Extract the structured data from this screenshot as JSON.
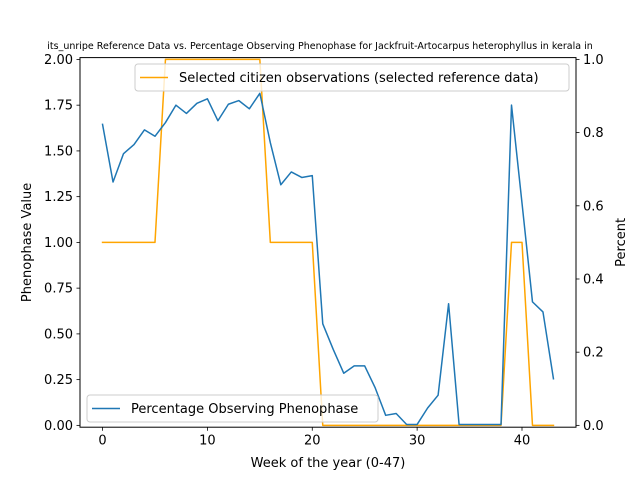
{
  "chart_data": {
    "type": "line",
    "title": "its_unripe Reference Data vs. Percentage Observing Phenophase for Jackfruit-Artocarpus heterophyllus in kerala in",
    "xlabel": "Week of the year (0-47)",
    "ylabel_left": "Phenophase Value",
    "ylabel_right": "Percent",
    "xlim": [
      -2.15,
      45.15
    ],
    "ylim_left": [
      -0.01,
      2.01
    ],
    "ylim_right": [
      -0.005,
      1.005
    ],
    "x_ticks": [
      0,
      10,
      20,
      30,
      40
    ],
    "y_ticks_left": [
      0.0,
      0.25,
      0.5,
      0.75,
      1.0,
      1.25,
      1.5,
      1.75,
      2.0
    ],
    "y_ticks_left_labels": [
      "0.00",
      "0.25",
      "0.50",
      "0.75",
      "1.00",
      "1.25",
      "1.50",
      "1.75",
      "2.00"
    ],
    "y_ticks_right": [
      0.0,
      0.2,
      0.4,
      0.6,
      0.8,
      1.0
    ],
    "y_ticks_right_labels": [
      "0.0",
      "0.2",
      "0.4",
      "0.6",
      "0.8",
      "1.0"
    ],
    "series": [
      {
        "name": "Percentage Observing Phenophase",
        "axis": "left",
        "color": "#1f77b4",
        "x": [
          0,
          1,
          2,
          3,
          4,
          5,
          6,
          7,
          8,
          9,
          10,
          11,
          12,
          13,
          14,
          15,
          16,
          17,
          18,
          19,
          20,
          21,
          22,
          23,
          24,
          25,
          26,
          27,
          28,
          29,
          30,
          31,
          32,
          33,
          34,
          35,
          36,
          37,
          38,
          39,
          40,
          41,
          42,
          43
        ],
        "y": [
          1.645,
          1.33,
          1.485,
          1.535,
          1.615,
          1.58,
          1.655,
          1.75,
          1.705,
          1.76,
          1.785,
          1.665,
          1.755,
          1.775,
          1.73,
          1.815,
          1.545,
          1.315,
          1.385,
          1.355,
          1.365,
          0.555,
          0.415,
          0.285,
          0.325,
          0.325,
          0.205,
          0.055,
          0.065,
          0.005,
          0.005,
          0.095,
          0.165,
          0.665,
          0.005,
          0.005,
          0.005,
          0.005,
          0.005,
          1.75,
          1.215,
          0.675,
          0.62,
          0.255
        ]
      },
      {
        "name": "Selected citizen observations (selected reference data)",
        "axis": "right",
        "color": "#ffa500",
        "x": [
          0,
          1,
          2,
          3,
          4,
          5,
          6,
          7,
          8,
          9,
          10,
          11,
          12,
          13,
          14,
          15,
          16,
          17,
          18,
          19,
          20,
          21,
          22,
          23,
          24,
          25,
          26,
          27,
          28,
          29,
          30,
          31,
          32,
          33,
          34,
          35,
          36,
          37,
          38,
          39,
          40,
          41,
          42,
          43
        ],
        "y": [
          0.5,
          0.5,
          0.5,
          0.5,
          0.5,
          0.5,
          1.0,
          1.0,
          1.0,
          1.0,
          1.0,
          1.0,
          1.0,
          1.0,
          1.0,
          1.0,
          0.5,
          0.5,
          0.5,
          0.5,
          0.5,
          0.0,
          0.0,
          0.0,
          0.0,
          0.0,
          0.0,
          0.0,
          0.0,
          0.0,
          0.0,
          0.0,
          0.0,
          0.0,
          0.0,
          0.0,
          0.0,
          0.0,
          0.0,
          0.5,
          0.5,
          0.0,
          0.0,
          0.0
        ]
      }
    ],
    "legend_left_position": "lower-left",
    "legend_right_position": "upper-right",
    "grid": false
  }
}
